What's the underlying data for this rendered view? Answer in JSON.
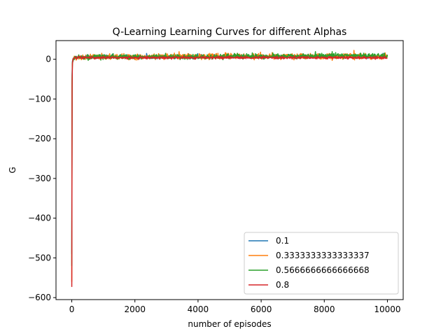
{
  "chart_data": {
    "type": "line",
    "title": "Q-Learning Learning Curves for different Alphas",
    "xlabel": "number of episodes",
    "ylabel": "G",
    "xlim": [
      -500,
      10500
    ],
    "ylim": [
      -605,
      47
    ],
    "xticks": [
      0,
      2000,
      4000,
      6000,
      8000,
      10000
    ],
    "xtick_labels": [
      "0",
      "2000",
      "4000",
      "6000",
      "8000",
      "10000"
    ],
    "yticks": [
      0,
      -100,
      -200,
      -300,
      -400,
      -500,
      -600
    ],
    "ytick_labels": [
      "0",
      "−100",
      "−200",
      "−300",
      "−400",
      "−500",
      "−600"
    ],
    "grid": false,
    "legend_position": "lower-right",
    "series": [
      {
        "name": "0.1",
        "color": "#1f77b4",
        "x": [
          0,
          5,
          10,
          20,
          40,
          60,
          100,
          200,
          500,
          1000,
          2000,
          3000,
          4000,
          5000,
          6000,
          7000,
          8000,
          9000,
          10000
        ],
        "y": [
          -490,
          -150,
          -40,
          -5,
          2,
          4,
          5,
          5,
          6,
          6,
          6,
          6,
          6,
          7,
          6,
          6,
          7,
          6,
          6
        ],
        "noise_amp": 4
      },
      {
        "name": "0.3333333333333337",
        "color": "#ff7f0e",
        "x": [
          0,
          5,
          10,
          20,
          40,
          60,
          100,
          200,
          500,
          1000,
          2000,
          3000,
          4000,
          5000,
          6000,
          7000,
          8000,
          9000,
          10000
        ],
        "y": [
          -560,
          -200,
          -60,
          -10,
          1,
          3,
          4,
          5,
          5,
          6,
          6,
          7,
          7,
          8,
          7,
          7,
          7,
          7,
          6
        ],
        "noise_amp": 7
      },
      {
        "name": "0.5666666666666668",
        "color": "#2ca02c",
        "x": [
          0,
          5,
          10,
          20,
          40,
          60,
          100,
          200,
          500,
          1000,
          2000,
          3000,
          4000,
          5000,
          6000,
          7000,
          8000,
          9000,
          10000
        ],
        "y": [
          -520,
          -180,
          -50,
          -8,
          -5,
          2,
          4,
          5,
          5,
          5,
          6,
          6,
          6,
          7,
          7,
          8,
          8,
          9,
          8
        ],
        "noise_amp": 6
      },
      {
        "name": "0.8",
        "color": "#d62728",
        "x": [
          0,
          5,
          10,
          20,
          40,
          60,
          100,
          200,
          500,
          1000,
          2000,
          3000,
          4000,
          5000,
          6000,
          7000,
          8000,
          9000,
          10000
        ],
        "y": [
          -573,
          -220,
          -70,
          -12,
          0,
          2,
          3,
          4,
          4,
          4,
          4,
          4,
          4,
          4,
          4,
          4,
          4,
          4,
          4
        ],
        "noise_amp": 3
      }
    ]
  }
}
